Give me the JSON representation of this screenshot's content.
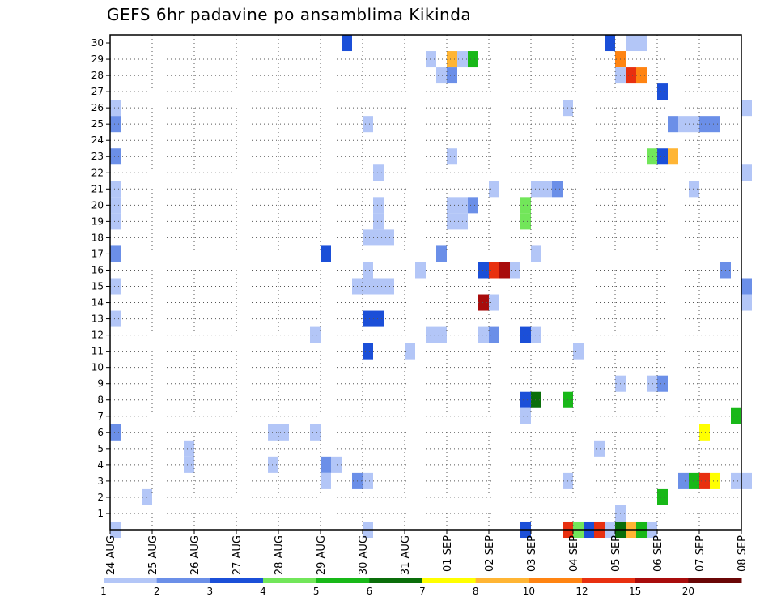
{
  "chart_data": {
    "type": "heatmap",
    "title": "GEFS 6hr padavine po ansamblima Kikinda",
    "xlabel": "",
    "ylabel": "",
    "x_ticks": [
      "24 AUG",
      "25 AUG",
      "26 AUG",
      "27 AUG",
      "28 AUG",
      "29 AUG",
      "30 AUG",
      "31 AUG",
      "01 SEP",
      "02 SEP",
      "03 SEP",
      "04 SEP",
      "05 SEP",
      "06 SEP",
      "07 SEP",
      "08 SEP"
    ],
    "y_ticks": [
      1,
      2,
      3,
      4,
      5,
      6,
      7,
      8,
      9,
      10,
      11,
      12,
      13,
      14,
      15,
      16,
      17,
      18,
      19,
      20,
      21,
      22,
      23,
      24,
      25,
      26,
      27,
      28,
      29,
      30
    ],
    "y_range": [
      0,
      30
    ],
    "grid": "dotted",
    "colorbar": {
      "labels": [
        "1",
        "2",
        "3",
        "4",
        "5",
        "6",
        "7",
        "8",
        "10",
        "12",
        "15",
        "20"
      ],
      "colors": [
        "#b3c6f7",
        "#6b8fe8",
        "#1b4fd8",
        "#72e65a",
        "#18b818",
        "#0a6e0a",
        "#ffff00",
        "#ffb534",
        "#ff8412",
        "#e83010",
        "#a80c0c",
        "#6a0606"
      ]
    },
    "cells_note": "each cell: date (day, hour UTC), ensemble member, 6-hour precipitation category (1-12 = colorbar bins)",
    "cells": [
      {
        "date": "29 AUG 12Z",
        "member": 30,
        "category": 3
      },
      {
        "date": "04 SEP 18Z",
        "member": 30,
        "category": 3
      },
      {
        "date": "05 SEP 06Z",
        "member": 30,
        "category": 1
      },
      {
        "date": "05 SEP 12Z",
        "member": 30,
        "category": 1
      },
      {
        "date": "31 AUG 12Z",
        "member": 29,
        "category": 1
      },
      {
        "date": "01 SEP 00Z",
        "member": 29,
        "category": 8
      },
      {
        "date": "01 SEP 06Z",
        "member": 29,
        "category": 1
      },
      {
        "date": "01 SEP 12Z",
        "member": 29,
        "category": 5
      },
      {
        "date": "05 SEP 00Z",
        "member": 29,
        "category": 9
      },
      {
        "date": "31 AUG 18Z",
        "member": 28,
        "category": 1
      },
      {
        "date": "01 SEP 00Z",
        "member": 28,
        "category": 2
      },
      {
        "date": "05 SEP 00Z",
        "member": 28,
        "category": 1
      },
      {
        "date": "05 SEP 06Z",
        "member": 28,
        "category": 10
      },
      {
        "date": "05 SEP 12Z",
        "member": 28,
        "category": 9
      },
      {
        "date": "06 SEP 00Z",
        "member": 27,
        "category": 3
      },
      {
        "date": "24 AUG 00Z",
        "member": 26,
        "category": 1
      },
      {
        "date": "03 SEP 18Z",
        "member": 26,
        "category": 1
      },
      {
        "date": "08 SEP 00Z",
        "member": 26,
        "category": 1
      },
      {
        "date": "24 AUG 00Z",
        "member": 25,
        "category": 2
      },
      {
        "date": "30 AUG 00Z",
        "member": 25,
        "category": 1
      },
      {
        "date": "06 SEP 06Z",
        "member": 25,
        "category": 2
      },
      {
        "date": "06 SEP 12Z",
        "member": 25,
        "category": 1
      },
      {
        "date": "06 SEP 18Z",
        "member": 25,
        "category": 1
      },
      {
        "date": "07 SEP 00Z",
        "member": 25,
        "category": 2
      },
      {
        "date": "07 SEP 06Z",
        "member": 25,
        "category": 2
      },
      {
        "date": "24 AUG 00Z",
        "member": 23,
        "category": 2
      },
      {
        "date": "01 SEP 00Z",
        "member": 23,
        "category": 1
      },
      {
        "date": "05 SEP 18Z",
        "member": 23,
        "category": 4
      },
      {
        "date": "06 SEP 00Z",
        "member": 23,
        "category": 3
      },
      {
        "date": "06 SEP 06Z",
        "member": 23,
        "category": 8
      },
      {
        "date": "30 AUG 06Z",
        "member": 22,
        "category": 1
      },
      {
        "date": "08 SEP 00Z",
        "member": 22,
        "category": 1
      },
      {
        "date": "24 AUG 00Z",
        "member": 21,
        "category": 1
      },
      {
        "date": "02 SEP 00Z",
        "member": 21,
        "category": 1
      },
      {
        "date": "03 SEP 00Z",
        "member": 21,
        "category": 1
      },
      {
        "date": "03 SEP 06Z",
        "member": 21,
        "category": 1
      },
      {
        "date": "03 SEP 12Z",
        "member": 21,
        "category": 2
      },
      {
        "date": "06 SEP 18Z",
        "member": 21,
        "category": 1
      },
      {
        "date": "24 AUG 00Z",
        "member": 20,
        "category": 1
      },
      {
        "date": "30 AUG 06Z",
        "member": 20,
        "category": 1
      },
      {
        "date": "01 SEP 00Z",
        "member": 20,
        "category": 1
      },
      {
        "date": "01 SEP 06Z",
        "member": 20,
        "category": 1
      },
      {
        "date": "01 SEP 12Z",
        "member": 20,
        "category": 2
      },
      {
        "date": "02 SEP 18Z",
        "member": 20,
        "category": 4
      },
      {
        "date": "24 AUG 00Z",
        "member": 19,
        "category": 1
      },
      {
        "date": "30 AUG 06Z",
        "member": 19,
        "category": 1
      },
      {
        "date": "01 SEP 00Z",
        "member": 19,
        "category": 1
      },
      {
        "date": "01 SEP 06Z",
        "member": 19,
        "category": 1
      },
      {
        "date": "02 SEP 18Z",
        "member": 19,
        "category": 4
      },
      {
        "date": "30 AUG 00Z",
        "member": 18,
        "category": 1
      },
      {
        "date": "30 AUG 06Z",
        "member": 18,
        "category": 1
      },
      {
        "date": "30 AUG 12Z",
        "member": 18,
        "category": 1
      },
      {
        "date": "24 AUG 00Z",
        "member": 17,
        "category": 2
      },
      {
        "date": "29 AUG 00Z",
        "member": 17,
        "category": 3
      },
      {
        "date": "31 AUG 18Z",
        "member": 17,
        "category": 2
      },
      {
        "date": "03 SEP 00Z",
        "member": 17,
        "category": 1
      },
      {
        "date": "30 AUG 00Z",
        "member": 16,
        "category": 1
      },
      {
        "date": "31 AUG 06Z",
        "member": 16,
        "category": 1
      },
      {
        "date": "01 SEP 18Z",
        "member": 16,
        "category": 3
      },
      {
        "date": "02 SEP 00Z",
        "member": 16,
        "category": 10
      },
      {
        "date": "02 SEP 06Z",
        "member": 16,
        "category": 11
      },
      {
        "date": "02 SEP 12Z",
        "member": 16,
        "category": 1
      },
      {
        "date": "07 SEP 12Z",
        "member": 16,
        "category": 2
      },
      {
        "date": "24 AUG 00Z",
        "member": 15,
        "category": 1
      },
      {
        "date": "29 AUG 18Z",
        "member": 15,
        "category": 1
      },
      {
        "date": "30 AUG 00Z",
        "member": 15,
        "category": 1
      },
      {
        "date": "30 AUG 06Z",
        "member": 15,
        "category": 1
      },
      {
        "date": "30 AUG 12Z",
        "member": 15,
        "category": 1
      },
      {
        "date": "08 SEP 00Z",
        "member": 15,
        "category": 2
      },
      {
        "date": "01 SEP 18Z",
        "member": 14,
        "category": 11
      },
      {
        "date": "02 SEP 00Z",
        "member": 14,
        "category": 1
      },
      {
        "date": "08 SEP 00Z",
        "member": 14,
        "category": 1
      },
      {
        "date": "24 AUG 00Z",
        "member": 13,
        "category": 1
      },
      {
        "date": "30 AUG 00Z",
        "member": 13,
        "category": 3
      },
      {
        "date": "30 AUG 06Z",
        "member": 13,
        "category": 3
      },
      {
        "date": "28 AUG 18Z",
        "member": 12,
        "category": 1
      },
      {
        "date": "31 AUG 12Z",
        "member": 12,
        "category": 1
      },
      {
        "date": "31 AUG 18Z",
        "member": 12,
        "category": 1
      },
      {
        "date": "01 SEP 18Z",
        "member": 12,
        "category": 1
      },
      {
        "date": "02 SEP 00Z",
        "member": 12,
        "category": 2
      },
      {
        "date": "02 SEP 18Z",
        "member": 12,
        "category": 3
      },
      {
        "date": "03 SEP 00Z",
        "member": 12,
        "category": 1
      },
      {
        "date": "30 AUG 00Z",
        "member": 11,
        "category": 3
      },
      {
        "date": "31 AUG 00Z",
        "member": 11,
        "category": 1
      },
      {
        "date": "04 SEP 00Z",
        "member": 11,
        "category": 1
      },
      {
        "date": "05 SEP 00Z",
        "member": 9,
        "category": 1
      },
      {
        "date": "05 SEP 18Z",
        "member": 9,
        "category": 1
      },
      {
        "date": "06 SEP 00Z",
        "member": 9,
        "category": 2
      },
      {
        "date": "02 SEP 18Z",
        "member": 8,
        "category": 3
      },
      {
        "date": "03 SEP 00Z",
        "member": 8,
        "category": 6
      },
      {
        "date": "03 SEP 18Z",
        "member": 8,
        "category": 5
      },
      {
        "date": "02 SEP 18Z",
        "member": 7,
        "category": 1
      },
      {
        "date": "07 SEP 18Z",
        "member": 7,
        "category": 5
      },
      {
        "date": "24 AUG 00Z",
        "member": 6,
        "category": 2
      },
      {
        "date": "27 AUG 18Z",
        "member": 6,
        "category": 1
      },
      {
        "date": "28 AUG 00Z",
        "member": 6,
        "category": 1
      },
      {
        "date": "28 AUG 18Z",
        "member": 6,
        "category": 1
      },
      {
        "date": "07 SEP 00Z",
        "member": 6,
        "category": 7
      },
      {
        "date": "25 AUG 18Z",
        "member": 5,
        "category": 1
      },
      {
        "date": "04 SEP 12Z",
        "member": 5,
        "category": 1
      },
      {
        "date": "25 AUG 18Z",
        "member": 4,
        "category": 1
      },
      {
        "date": "27 AUG 18Z",
        "member": 4,
        "category": 1
      },
      {
        "date": "29 AUG 00Z",
        "member": 4,
        "category": 2
      },
      {
        "date": "29 AUG 06Z",
        "member": 4,
        "category": 1
      },
      {
        "date": "29 AUG 00Z",
        "member": 3,
        "category": 1
      },
      {
        "date": "29 AUG 18Z",
        "member": 3,
        "category": 2
      },
      {
        "date": "30 AUG 00Z",
        "member": 3,
        "category": 1
      },
      {
        "date": "03 SEP 18Z",
        "member": 3,
        "category": 1
      },
      {
        "date": "06 SEP 12Z",
        "member": 3,
        "category": 2
      },
      {
        "date": "06 SEP 18Z",
        "member": 3,
        "category": 5
      },
      {
        "date": "07 SEP 00Z",
        "member": 3,
        "category": 10
      },
      {
        "date": "07 SEP 06Z",
        "member": 3,
        "category": 7
      },
      {
        "date": "07 SEP 18Z",
        "member": 3,
        "category": 1
      },
      {
        "date": "08 SEP 00Z",
        "member": 3,
        "category": 1
      },
      {
        "date": "24 AUG 18Z",
        "member": 2,
        "category": 1
      },
      {
        "date": "06 SEP 00Z",
        "member": 2,
        "category": 5
      },
      {
        "date": "05 SEP 00Z",
        "member": 1,
        "category": 1
      },
      {
        "date": "24 AUG 00Z",
        "member": 0,
        "category": 1
      },
      {
        "date": "30 AUG 00Z",
        "member": 0,
        "category": 1
      },
      {
        "date": "02 SEP 18Z",
        "member": 0,
        "category": 3
      },
      {
        "date": "03 SEP 18Z",
        "member": 0,
        "category": 10
      },
      {
        "date": "04 SEP 00Z",
        "member": 0,
        "category": 4
      },
      {
        "date": "04 SEP 06Z",
        "member": 0,
        "category": 3
      },
      {
        "date": "04 SEP 12Z",
        "member": 0,
        "category": 10
      },
      {
        "date": "04 SEP 18Z",
        "member": 0,
        "category": 1
      },
      {
        "date": "05 SEP 00Z",
        "member": 0,
        "category": 6
      },
      {
        "date": "05 SEP 06Z",
        "member": 0,
        "category": 8
      },
      {
        "date": "05 SEP 12Z",
        "member": 0,
        "category": 5
      },
      {
        "date": "05 SEP 18Z",
        "member": 0,
        "category": 1
      }
    ]
  }
}
